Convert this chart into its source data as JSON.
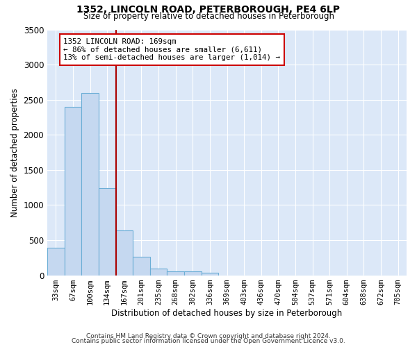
{
  "title": "1352, LINCOLN ROAD, PETERBOROUGH, PE4 6LP",
  "subtitle": "Size of property relative to detached houses in Peterborough",
  "xlabel": "Distribution of detached houses by size in Peterborough",
  "ylabel": "Number of detached properties",
  "categories": [
    "33sqm",
    "67sqm",
    "100sqm",
    "134sqm",
    "167sqm",
    "201sqm",
    "235sqm",
    "268sqm",
    "302sqm",
    "336sqm",
    "369sqm",
    "403sqm",
    "436sqm",
    "470sqm",
    "504sqm",
    "537sqm",
    "571sqm",
    "604sqm",
    "638sqm",
    "672sqm",
    "705sqm"
  ],
  "values": [
    390,
    2400,
    2600,
    1240,
    640,
    260,
    95,
    60,
    55,
    40,
    0,
    0,
    0,
    0,
    0,
    0,
    0,
    0,
    0,
    0,
    0
  ],
  "bar_color": "#c5d8f0",
  "bar_edge_color": "#6baed6",
  "marker_label": "1352 LINCOLN ROAD: 169sqm",
  "annotation_line1": "← 86% of detached houses are smaller (6,611)",
  "annotation_line2": "13% of semi-detached houses are larger (1,014) →",
  "annotation_box_color": "#ffffff",
  "annotation_box_edge_color": "#cc0000",
  "vline_color": "#aa0000",
  "background_color": "#dce8f8",
  "grid_color": "#ffffff",
  "ylim": [
    0,
    3500
  ],
  "yticks": [
    0,
    500,
    1000,
    1500,
    2000,
    2500,
    3000,
    3500
  ],
  "footer_line1": "Contains HM Land Registry data © Crown copyright and database right 2024.",
  "footer_line2": "Contains public sector information licensed under the Open Government Licence v3.0."
}
